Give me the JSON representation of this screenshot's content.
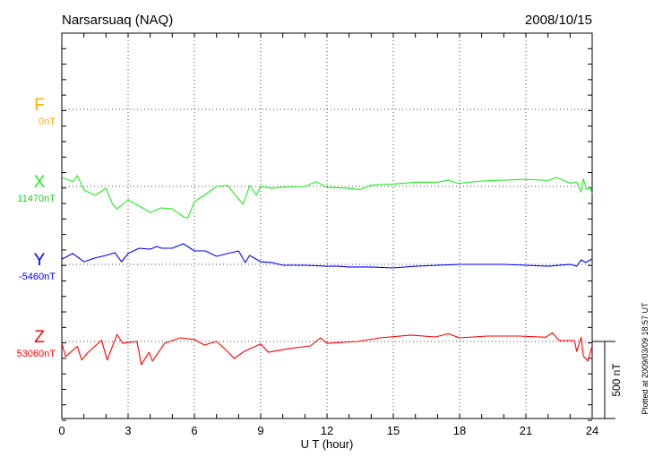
{
  "chart_data": {
    "type": "line",
    "title": "Narsarsuaq (NAQ)",
    "date": "2008/10/15",
    "xlabel": "U T (hour)",
    "xlim": [
      0,
      24
    ],
    "xticks": [
      "0",
      "3",
      "6",
      "9",
      "12",
      "15",
      "18",
      "21",
      "24"
    ],
    "grid": true,
    "scale_bar": {
      "label": "500 nT",
      "value_nT": 500
    },
    "footer": "Plotted at 2009/03/09 18:57 UT",
    "y_unit": "nT offset from baseline (100 nT per tick)",
    "series": [
      {
        "name": "F",
        "baseline_label": "0nT",
        "color": "#ffaa00",
        "x": [],
        "values": []
      },
      {
        "name": "X",
        "baseline_label": "11470nT",
        "color": "#22ee22",
        "x": [
          0,
          0.5,
          0.7,
          1,
          1.5,
          2,
          2.3,
          2.5,
          3,
          3.5,
          4,
          4.5,
          5,
          5.5,
          5.7,
          6,
          6.5,
          7,
          7.5,
          8,
          8.2,
          8.5,
          8.8,
          9,
          9.5,
          10,
          11,
          11.5,
          12,
          13,
          13.5,
          14,
          15,
          16,
          17,
          17.5,
          17.9,
          18,
          19,
          20,
          21,
          22,
          22.4,
          23,
          23.3,
          23.5,
          23.6,
          23.75,
          23.9,
          24
        ],
        "values": [
          58,
          30,
          70,
          -23,
          -58,
          -12,
          -116,
          -145,
          -87,
          -127,
          -168,
          -139,
          -145,
          -197,
          -203,
          -99,
          -52,
          0,
          6,
          -81,
          -116,
          6,
          -58,
          0,
          -12,
          -5,
          0,
          30,
          -5,
          -12,
          -20,
          8,
          15,
          27,
          27,
          40,
          21,
          21,
          35,
          40,
          46,
          38,
          58,
          21,
          27,
          -37,
          50,
          -20,
          -5,
          -46
        ]
      },
      {
        "name": "Y",
        "baseline_label": "-5460nT",
        "color": "#0000ff",
        "x": [
          0,
          0.5,
          1,
          1.5,
          2,
          2.4,
          2.7,
          3,
          3.5,
          4,
          4.3,
          4.5,
          5,
          5.5,
          6,
          6.5,
          7,
          7.5,
          8,
          8.3,
          8.5,
          9,
          9.5,
          10,
          11,
          12,
          12.5,
          13,
          14,
          15,
          16,
          17,
          18,
          19,
          20,
          21,
          22,
          23,
          23.3,
          23.5,
          23.7,
          24
        ],
        "values": [
          33,
          70,
          17,
          41,
          58,
          75,
          17,
          70,
          104,
          98,
          116,
          104,
          104,
          133,
          87,
          87,
          52,
          70,
          87,
          12,
          58,
          17,
          12,
          -6,
          -6,
          -12,
          -12,
          -17,
          -17,
          -23,
          -12,
          -6,
          0,
          0,
          0,
          -6,
          -12,
          0,
          -12,
          29,
          12,
          35
        ]
      },
      {
        "name": "Z",
        "baseline_label": "53060nT",
        "color": "#ff0000",
        "x": [
          0,
          0.17,
          0.7,
          0.9,
          1.2,
          1.8,
          2.05,
          2.2,
          2.5,
          2.75,
          3.4,
          3.6,
          3.95,
          4.1,
          4.65,
          5.35,
          6,
          6.45,
          7,
          7.5,
          7.8,
          8.25,
          9,
          9.35,
          10.3,
          11.25,
          11.7,
          12,
          13.4,
          14.4,
          15.8,
          16.9,
          17.5,
          18,
          19.25,
          20.7,
          21.9,
          22.2,
          22.5,
          23.2,
          23.3,
          23.5,
          23.6,
          23.8,
          24
        ],
        "values": [
          -13,
          -98,
          -31,
          -120,
          -69,
          8,
          -120,
          -64,
          46,
          -12,
          0,
          -150,
          -70,
          -127,
          -12,
          23,
          12,
          -23,
          0,
          -64,
          -110,
          -64,
          -16,
          -70,
          -46,
          -29,
          23,
          -12,
          0,
          23,
          41,
          29,
          50,
          23,
          35,
          35,
          27,
          56,
          6,
          6,
          -64,
          27,
          -93,
          -127,
          -31
        ]
      }
    ]
  }
}
